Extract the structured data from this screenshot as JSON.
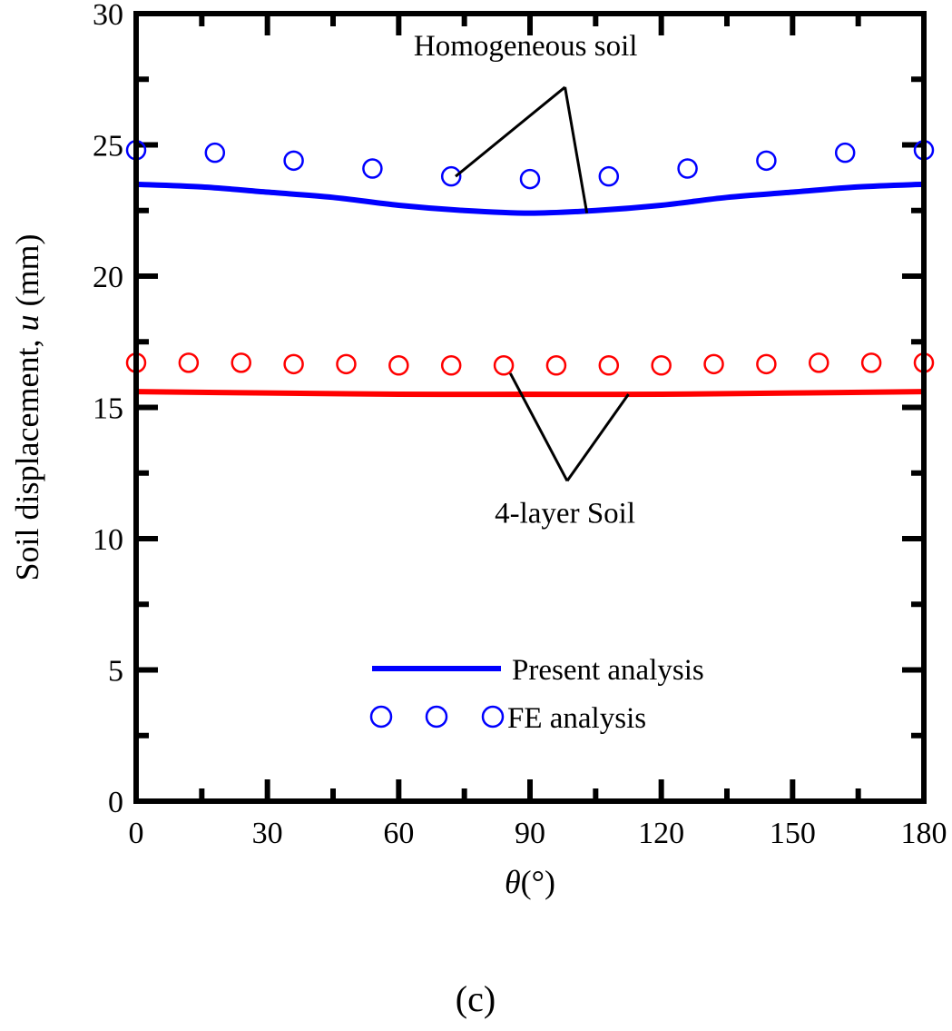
{
  "chart_data": {
    "type": "line",
    "xlabel_symbol": "θ",
    "xlabel_unit": "(°)",
    "ylabel_text": "Soil displacement, ",
    "ylabel_symbol": "u",
    "ylabel_unit": " (mm)",
    "xlim": [
      0,
      180
    ],
    "ylim": [
      0,
      30
    ],
    "xticks": [
      0,
      30,
      60,
      90,
      120,
      150,
      180
    ],
    "yticks": [
      0,
      5,
      10,
      15,
      20,
      25,
      30
    ],
    "x_minor_step": 15,
    "y_minor_step": 2.5,
    "grid": false,
    "series": [
      {
        "group": "homogeneous",
        "method": "present",
        "style": "line",
        "color": "#0000ff",
        "x": [
          0,
          15,
          30,
          45,
          60,
          75,
          90,
          105,
          120,
          135,
          150,
          165,
          180
        ],
        "y": [
          23.5,
          23.4,
          23.2,
          23.0,
          22.7,
          22.5,
          22.4,
          22.5,
          22.7,
          23.0,
          23.2,
          23.4,
          23.5
        ]
      },
      {
        "group": "homogeneous",
        "method": "fe",
        "style": "marker",
        "color": "#0000ff",
        "x": [
          0,
          18,
          36,
          54,
          72,
          90,
          108,
          126,
          144,
          162,
          180
        ],
        "y": [
          24.8,
          24.7,
          24.4,
          24.1,
          23.8,
          23.7,
          23.8,
          24.1,
          24.4,
          24.7,
          24.8
        ]
      },
      {
        "group": "4-layer",
        "method": "present",
        "style": "line",
        "color": "#ff0000",
        "x": [
          0,
          30,
          60,
          90,
          120,
          150,
          180
        ],
        "y": [
          15.6,
          15.55,
          15.5,
          15.5,
          15.5,
          15.55,
          15.6
        ]
      },
      {
        "group": "4-layer",
        "method": "fe",
        "style": "marker",
        "color": "#ff0000",
        "x": [
          0,
          12,
          24,
          36,
          48,
          60,
          72,
          84,
          96,
          108,
          120,
          132,
          144,
          156,
          168,
          180
        ],
        "y": [
          16.7,
          16.7,
          16.7,
          16.65,
          16.65,
          16.6,
          16.6,
          16.6,
          16.6,
          16.6,
          16.6,
          16.65,
          16.65,
          16.7,
          16.7,
          16.7
        ]
      }
    ],
    "annotations": [
      {
        "text": "Homogeneous soil",
        "position": "top-center"
      },
      {
        "text": "4-layer Soil",
        "position": "middle-center"
      }
    ],
    "legend": {
      "placement": "bottom-center",
      "entries": [
        {
          "label": "Present analysis",
          "style": "line",
          "color": "#0000ff"
        },
        {
          "label": "FE analysis",
          "style": "marker",
          "color": "#0000ff"
        }
      ]
    }
  },
  "panel_label": "(c)"
}
